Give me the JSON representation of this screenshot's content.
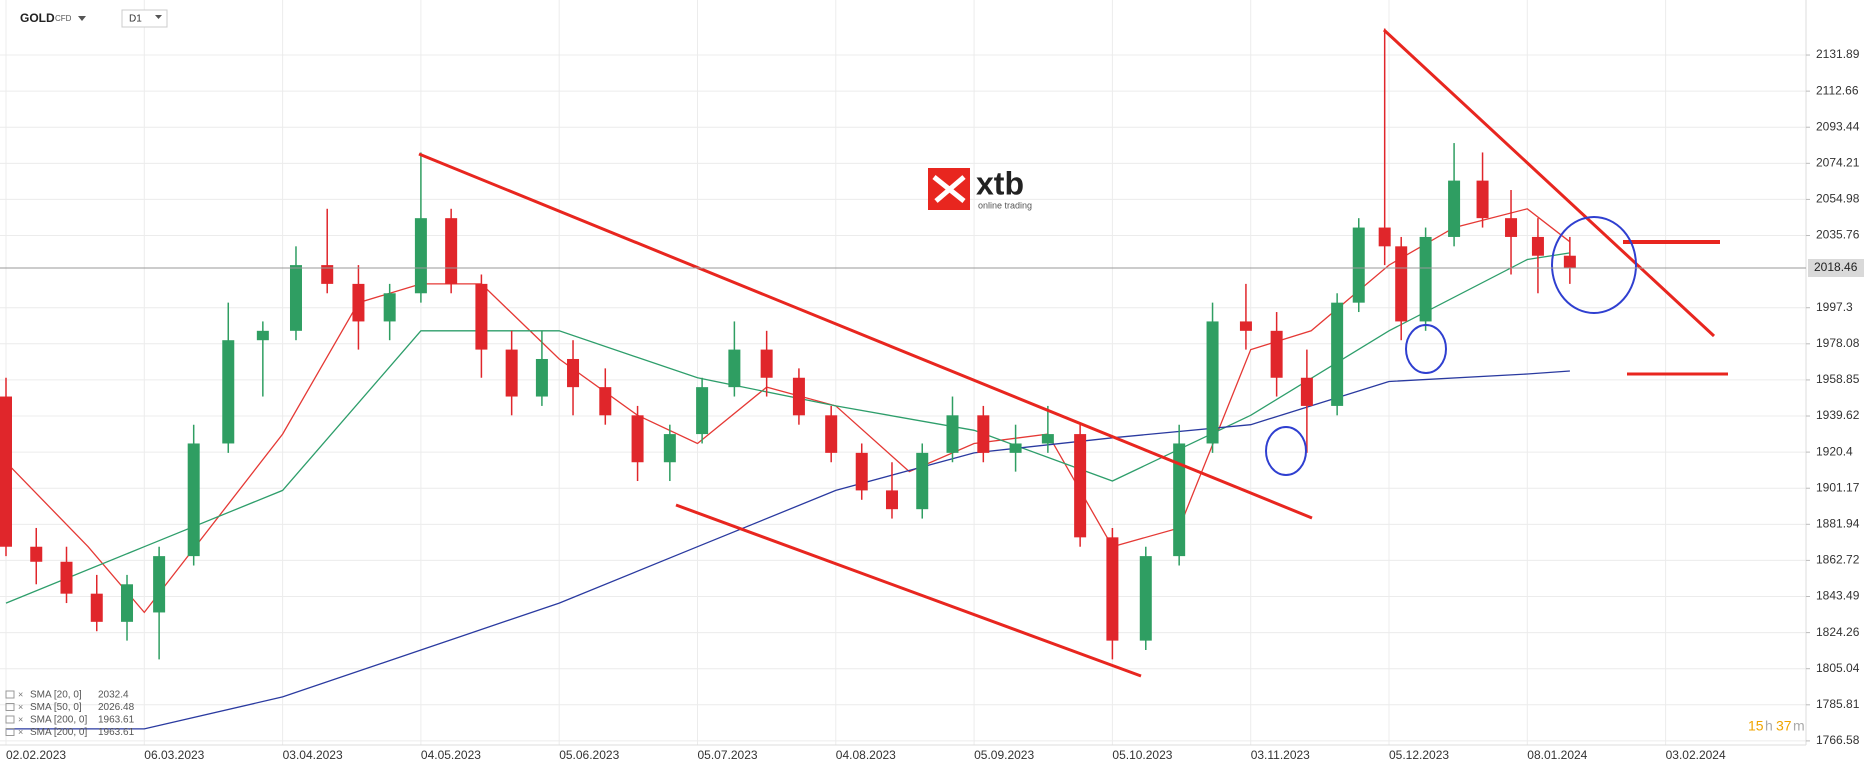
{
  "header": {
    "symbol": "GOLD",
    "instrument": "CFD",
    "interval": "D1"
  },
  "logo": {
    "brand": "xtb",
    "tagline": "online trading"
  },
  "countdown": [
    "15",
    "h",
    "37",
    "m"
  ],
  "chart_data": {
    "type": "candlestick",
    "last_price": 2018.46,
    "up_color": "#2f9e62",
    "down_color": "#e0262b",
    "ylim": [
      1764.4,
      2161.2
    ],
    "yticks": [
      2131.89,
      2112.66,
      2093.44,
      2074.21,
      2054.98,
      2035.76,
      1997.3,
      1978.08,
      1958.85,
      1939.62,
      1920.4,
      1901.17,
      1881.94,
      1862.72,
      1843.49,
      1824.26,
      1805.04,
      1785.81,
      1766.58
    ],
    "xticks": [
      "02.02.2023",
      "06.03.2023",
      "03.04.2023",
      "04.05.2023",
      "05.06.2023",
      "05.07.2023",
      "04.08.2023",
      "05.09.2023",
      "05.10.2023",
      "03.11.2023",
      "05.12.2023",
      "08.01.2024",
      "03.02.2024"
    ],
    "grid": true,
    "x": [
      "02.02.2023",
      "09.02.2023",
      "16.02.2023",
      "23.02.2023",
      "02.03.2023",
      "09.03.2023",
      "16.03.2023",
      "23.03.2023",
      "30.03.2023",
      "06.04.2023",
      "13.04.2023",
      "20.04.2023",
      "27.04.2023",
      "04.05.2023",
      "11.05.2023",
      "18.05.2023",
      "25.05.2023",
      "01.06.2023",
      "08.06.2023",
      "15.06.2023",
      "22.06.2023",
      "29.06.2023",
      "06.07.2023",
      "13.07.2023",
      "20.07.2023",
      "27.07.2023",
      "03.08.2023",
      "10.08.2023",
      "17.08.2023",
      "24.08.2023",
      "31.08.2023",
      "07.09.2023",
      "14.09.2023",
      "21.09.2023",
      "28.09.2023",
      "05.10.2023",
      "12.10.2023",
      "19.10.2023",
      "26.10.2023",
      "02.11.2023",
      "09.11.2023",
      "16.11.2023",
      "23.11.2023",
      "28.11.2023",
      "04.12.2023",
      "08.12.2023",
      "14.12.2023",
      "21.12.2023",
      "28.12.2023",
      "04.01.2024",
      "10.01.2024",
      "16.01.2024"
    ],
    "open": [
      1950,
      1870,
      1862,
      1845,
      1830,
      1835,
      1865,
      1925,
      1980,
      1985,
      2020,
      2010,
      1990,
      2005,
      2045,
      2010,
      1975,
      1950,
      1970,
      1955,
      1940,
      1915,
      1930,
      1955,
      1975,
      1960,
      1940,
      1920,
      1900,
      1890,
      1920,
      1940,
      1920,
      1925,
      1930,
      1875,
      1820,
      1865,
      1925,
      1990,
      1985,
      1960,
      1945,
      2000,
      2040,
      2030,
      1990,
      2035,
      2065,
      2045,
      2035,
      2025
    ],
    "high": [
      1960,
      1880,
      1870,
      1855,
      1855,
      1870,
      1935,
      2000,
      1990,
      2030,
      2050,
      2020,
      2010,
      2080,
      2050,
      2015,
      1985,
      1985,
      1980,
      1965,
      1945,
      1935,
      1960,
      1990,
      1985,
      1965,
      1945,
      1925,
      1915,
      1925,
      1950,
      1945,
      1935,
      1945,
      1935,
      1880,
      1870,
      1935,
      2000,
      2010,
      1995,
      1975,
      2005,
      2045,
      2146,
      2035,
      2040,
      2085,
      2080,
      2060,
      2045,
      2035
    ],
    "low": [
      1865,
      1850,
      1840,
      1825,
      1820,
      1810,
      1860,
      1920,
      1950,
      1980,
      2005,
      1975,
      1980,
      2000,
      2005,
      1960,
      1940,
      1945,
      1940,
      1935,
      1905,
      1905,
      1925,
      1950,
      1950,
      1935,
      1915,
      1895,
      1885,
      1885,
      1915,
      1915,
      1910,
      1920,
      1870,
      1810,
      1815,
      1860,
      1920,
      1975,
      1950,
      1920,
      1940,
      1995,
      2020,
      1980,
      1985,
      2030,
      2040,
      2015,
      2005,
      2010
    ],
    "close": [
      1870,
      1862,
      1845,
      1830,
      1850,
      1865,
      1925,
      1980,
      1985,
      2020,
      2010,
      1990,
      2005,
      2045,
      2010,
      1975,
      1950,
      1970,
      1955,
      1940,
      1915,
      1930,
      1955,
      1975,
      1960,
      1940,
      1920,
      1900,
      1890,
      1920,
      1940,
      1920,
      1925,
      1930,
      1875,
      1820,
      1865,
      1925,
      1990,
      1985,
      1960,
      1945,
      2000,
      2040,
      2030,
      1990,
      2035,
      2065,
      2045,
      2035,
      2025,
      2018.46
    ],
    "series": [
      {
        "name": "SMA [20, 0]",
        "last": 2032.4,
        "color": "#e53935",
        "x": [
          "02.02.2023",
          "21.02.2023",
          "06.03.2023",
          "03.04.2023",
          "20.04.2023",
          "04.05.2023",
          "18.05.2023",
          "05.06.2023",
          "22.06.2023",
          "05.07.2023",
          "20.07.2023",
          "04.08.2023",
          "21.08.2023",
          "05.09.2023",
          "21.09.2023",
          "05.10.2023",
          "19.10.2023",
          "03.11.2023",
          "17.11.2023",
          "05.12.2023",
          "21.12.2023",
          "08.01.2024",
          "16.01.2024"
        ],
        "values": [
          1915,
          1870,
          1835,
          1930,
          2000,
          2010,
          2010,
          1970,
          1940,
          1925,
          1955,
          1945,
          1910,
          1925,
          1930,
          1870,
          1880,
          1975,
          1985,
          2020,
          2040,
          2050,
          2032.4
        ]
      },
      {
        "name": "SMA [50, 0]",
        "last": 2026.48,
        "color": "#2e9e6b",
        "x": [
          "02.02.2023",
          "06.03.2023",
          "03.04.2023",
          "04.05.2023",
          "05.06.2023",
          "05.07.2023",
          "04.08.2023",
          "05.09.2023",
          "05.10.2023",
          "03.11.2023",
          "05.12.2023",
          "08.01.2024",
          "16.01.2024"
        ],
        "values": [
          1840,
          1870,
          1900,
          1985,
          1985,
          1960,
          1945,
          1932,
          1905,
          1940,
          1985,
          2023,
          2026.48
        ]
      },
      {
        "name": "SMA [200, 0]",
        "last": 1963.61,
        "color": "#2a3aa0",
        "x": [
          "02.02.2023",
          "06.03.2023",
          "03.04.2023",
          "04.05.2023",
          "05.06.2023",
          "05.07.2023",
          "04.08.2023",
          "05.09.2023",
          "05.10.2023",
          "03.11.2023",
          "05.12.2023",
          "08.01.2024",
          "16.01.2024"
        ],
        "values": [
          1773,
          1773,
          1790,
          1815,
          1840,
          1870,
          1900,
          1920,
          1928,
          1935,
          1958,
          1962,
          1963.61
        ]
      },
      {
        "name": "SMA [200, 0]",
        "last": 1963.61,
        "color": "#2a3aa0"
      }
    ]
  }
}
